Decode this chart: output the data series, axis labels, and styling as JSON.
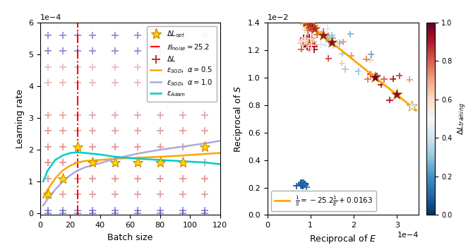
{
  "left_plot": {
    "xlabel": "Batch size",
    "ylabel": "Learning rate",
    "xlim": [
      0,
      120
    ],
    "ylim": [
      -1e-05,
      0.0006
    ],
    "b_noise": 25.2,
    "batch_sizes": [
      5,
      15,
      25,
      35,
      50,
      65,
      80,
      95,
      110
    ],
    "lr_rows": [
      0.0,
      1e-05,
      6e-05,
      0.00011,
      0.00016,
      0.00021,
      0.00026,
      0.00031,
      0.00041,
      0.00046,
      0.00051,
      0.00056
    ],
    "blue_lrs": [
      0.0,
      1e-05,
      0.00051,
      0.00056
    ],
    "opt_stars_x": [
      5,
      15,
      25,
      35,
      50,
      65,
      80,
      95,
      110
    ],
    "opt_stars_y": [
      6e-05,
      0.00011,
      0.00021,
      0.00016,
      0.00016,
      0.00016,
      0.00016,
      0.00016,
      0.00021
    ],
    "sgd05_x": [
      2,
      5,
      10,
      15,
      20,
      25,
      30,
      40,
      50,
      65,
      80,
      95,
      110,
      120
    ],
    "sgd05_y": [
      5e-05,
      7.5e-05,
      0.00011,
      0.000135,
      0.00015,
      0.00016,
      0.000165,
      0.000168,
      0.000172,
      0.000175,
      0.000178,
      0.000182,
      0.000187,
      0.00019
    ],
    "sgd10_x": [
      2,
      5,
      10,
      15,
      20,
      25,
      30,
      40,
      50,
      65,
      80,
      95,
      110,
      120
    ],
    "sgd10_y": [
      2.5e-05,
      4.5e-05,
      7.5e-05,
      0.0001,
      0.00012,
      0.000135,
      0.000145,
      0.000158,
      0.000172,
      0.000188,
      0.0002,
      0.00021,
      0.00022,
      0.000228
    ],
    "adam_x": [
      2,
      5,
      10,
      15,
      20,
      25,
      30,
      40,
      50,
      65,
      80,
      95,
      110,
      120
    ],
    "adam_y": [
      0.0001,
      0.000135,
      0.000168,
      0.000182,
      0.00019,
      0.000192,
      0.00019,
      0.000185,
      0.000178,
      0.000172,
      0.000168,
      0.000164,
      0.00016,
      0.000155
    ],
    "sgd05_color": "#FFA500",
    "sgd10_color": "#AAAADD",
    "adam_color": "#00CCCC"
  },
  "right_plot": {
    "xlabel": "Reciprocal of $E$",
    "ylabel": "Reciprocal of $S$",
    "xlim": [
      0,
      0.00035
    ],
    "ylim": [
      0,
      0.014
    ],
    "fit_slope": -25.2,
    "fit_intercept": 0.0163,
    "fit_x_start": 7.2e-05,
    "fit_x_end": 0.000345,
    "fit_color": "#FFA500",
    "fit_label": "$\\frac{1}{S} = -25.2\\frac{1}{E} + 0.0163$",
    "colorbar_label": "$\\Delta L_{training}$",
    "cmap": "RdBu_r"
  },
  "background_color": "white"
}
